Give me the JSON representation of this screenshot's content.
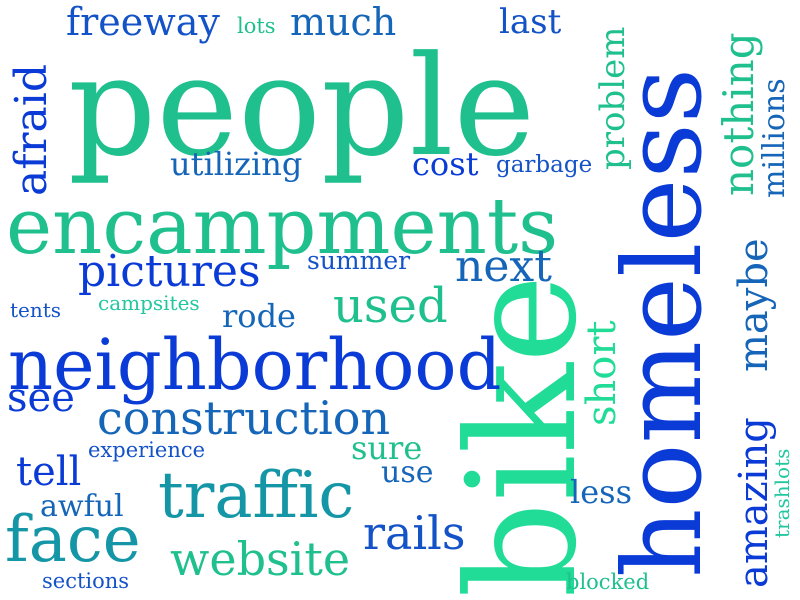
{
  "colors": {
    "deep_blue": "#0a3bd6",
    "royal_blue": "#1452c8",
    "ocean_blue": "#1565b8",
    "teal": "#1596a6",
    "sea_green": "#1fc08e",
    "mint": "#20dc96",
    "cyan_green": "#22c7a0"
  },
  "words": [
    "people",
    "encampments",
    "homeless",
    "bike",
    "neighborhood",
    "traffic",
    "construction",
    "face",
    "pictures",
    "used",
    "nothing",
    "afraid",
    "amazing",
    "maybe",
    "next",
    "rails",
    "website",
    "freeway",
    "much",
    "last",
    "problem",
    "millions",
    "utilizing",
    "cost",
    "garbage",
    "summer",
    "rode",
    "short",
    "see",
    "tell",
    "awful",
    "sure",
    "use",
    "less",
    "experience",
    "campsites",
    "tents",
    "lots",
    "sections",
    "blocked",
    "trashlots"
  ]
}
